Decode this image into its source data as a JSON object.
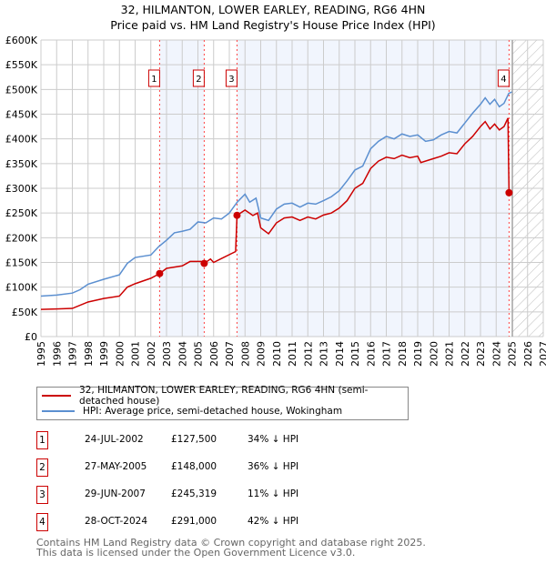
{
  "chart_data": {
    "type": "line",
    "title": "32, HILMANTON, LOWER EARLEY, READING, RG6 4HN",
    "subtitle": "Price paid vs. HM Land Registry's House Price Index (HPI)",
    "xlim": [
      1995,
      2027
    ],
    "ylim": [
      0,
      600000
    ],
    "x_ticks": [
      "1995",
      "1996",
      "1997",
      "1998",
      "1999",
      "2000",
      "2001",
      "2002",
      "2003",
      "2004",
      "2005",
      "2006",
      "2007",
      "2008",
      "2009",
      "2010",
      "2011",
      "2012",
      "2013",
      "2014",
      "2015",
      "2016",
      "2017",
      "2018",
      "2019",
      "2020",
      "2021",
      "2022",
      "2023",
      "2024",
      "2025",
      "2026",
      "2027"
    ],
    "y_ticks": [
      {
        "v": 0,
        "label": "£0"
      },
      {
        "v": 50000,
        "label": "£50K"
      },
      {
        "v": 100000,
        "label": "£100K"
      },
      {
        "v": 150000,
        "label": "£150K"
      },
      {
        "v": 200000,
        "label": "£200K"
      },
      {
        "v": 250000,
        "label": "£250K"
      },
      {
        "v": 300000,
        "label": "£300K"
      },
      {
        "v": 350000,
        "label": "£350K"
      },
      {
        "v": 400000,
        "label": "£400K"
      },
      {
        "v": 450000,
        "label": "£450K"
      },
      {
        "v": 500000,
        "label": "£500K"
      },
      {
        "v": 550000,
        "label": "£550K"
      },
      {
        "v": 600000,
        "label": "£600K"
      }
    ],
    "grid": true,
    "shaded_ranges": [
      [
        2002.56,
        2005.4
      ],
      [
        2007.49,
        2024.82
      ]
    ],
    "forecast_hatch_from": 2025.04,
    "series": [
      {
        "name": "32, HILMANTON, LOWER EARLEY, READING, RG6 4HN (semi-detached house)",
        "color": "#cc0000",
        "x": [
          1995,
          1996,
          1997,
          1998,
          1999,
          2000,
          2000.5,
          2001,
          2002,
          2002.56,
          2003,
          2004,
          2004.5,
          2005.2,
          2005.4,
          2005.8,
          2006,
          2006.5,
          2007.4,
          2007.49,
          2008,
          2008.5,
          2008.8,
          2009,
          2009.5,
          2010,
          2010.5,
          2011,
          2011.5,
          2012,
          2012.5,
          2013,
          2013.5,
          2014,
          2014.5,
          2015,
          2015.5,
          2016,
          2016.5,
          2017,
          2017.5,
          2018,
          2018.5,
          2019,
          2019.2,
          2020,
          2020.5,
          2021,
          2021.5,
          2022,
          2022.5,
          2023,
          2023.3,
          2023.6,
          2023.9,
          2024.2,
          2024.5,
          2024.75,
          2024.82
        ],
        "y": [
          55000,
          56000,
          57000,
          70000,
          77000,
          82000,
          100000,
          107000,
          118000,
          127500,
          138000,
          143000,
          152000,
          152000,
          148000,
          157000,
          150000,
          158000,
          172000,
          245319,
          256000,
          245000,
          250000,
          220000,
          208000,
          230000,
          240000,
          242000,
          235000,
          242000,
          238000,
          246000,
          250000,
          260000,
          275000,
          300000,
          310000,
          340000,
          355000,
          363000,
          360000,
          367000,
          362000,
          365000,
          352000,
          360000,
          365000,
          372000,
          370000,
          390000,
          405000,
          425000,
          435000,
          420000,
          430000,
          418000,
          425000,
          442000,
          291000
        ]
      },
      {
        "name": "HPI: Average price, semi-detached house, Wokingham",
        "color": "#5b8fd0",
        "x": [
          1995,
          1996,
          1997,
          1997.5,
          1998,
          1999,
          2000,
          2000.5,
          2001,
          2002,
          2002.5,
          2003,
          2003.5,
          2004,
          2004.5,
          2005,
          2005.5,
          2006,
          2006.5,
          2007,
          2007.5,
          2008,
          2008.3,
          2008.7,
          2009,
          2009.5,
          2010,
          2010.5,
          2011,
          2011.5,
          2012,
          2012.5,
          2013,
          2013.5,
          2014,
          2014.5,
          2015,
          2015.5,
          2016,
          2016.5,
          2017,
          2017.5,
          2018,
          2018.5,
          2019,
          2019.5,
          2020,
          2020.5,
          2021,
          2021.5,
          2022,
          2022.5,
          2023,
          2023.3,
          2023.6,
          2023.9,
          2024.2,
          2024.5,
          2024.8,
          2025
        ],
        "y": [
          82000,
          84000,
          88000,
          95000,
          106000,
          116000,
          125000,
          148000,
          160000,
          165000,
          182000,
          195000,
          210000,
          213000,
          217000,
          232000,
          230000,
          240000,
          238000,
          250000,
          272000,
          288000,
          272000,
          280000,
          240000,
          235000,
          258000,
          268000,
          270000,
          262000,
          270000,
          268000,
          275000,
          283000,
          295000,
          315000,
          337000,
          345000,
          380000,
          395000,
          405000,
          400000,
          410000,
          405000,
          408000,
          395000,
          398000,
          408000,
          415000,
          412000,
          432000,
          452000,
          470000,
          483000,
          470000,
          480000,
          465000,
          472000,
          492000,
          495000
        ]
      }
    ],
    "sales": [
      {
        "label": "1",
        "x": 2002.56,
        "y": 127500
      },
      {
        "label": "2",
        "x": 2005.4,
        "y": 148000
      },
      {
        "label": "3",
        "x": 2007.49,
        "y": 245319
      },
      {
        "label": "4",
        "x": 2024.82,
        "y": 291000
      }
    ]
  },
  "legend": {
    "property": "32, HILMANTON, LOWER EARLEY, READING, RG6 4HN (semi-detached house)",
    "hpi": "HPI: Average price, semi-detached house, Wokingham"
  },
  "table": [
    {
      "num": "1",
      "date": "24-JUL-2002",
      "price": "£127,500",
      "hpi": "34% ↓ HPI"
    },
    {
      "num": "2",
      "date": "27-MAY-2005",
      "price": "£148,000",
      "hpi": "36% ↓ HPI"
    },
    {
      "num": "3",
      "date": "29-JUN-2007",
      "price": "£245,319",
      "hpi": "11% ↓ HPI"
    },
    {
      "num": "4",
      "date": "28-OCT-2024",
      "price": "£291,000",
      "hpi": "42% ↓ HPI"
    }
  ],
  "footer": {
    "line1": "Contains HM Land Registry data © Crown copyright and database right 2025.",
    "line2": "This data is licensed under the Open Government Licence v3.0."
  }
}
